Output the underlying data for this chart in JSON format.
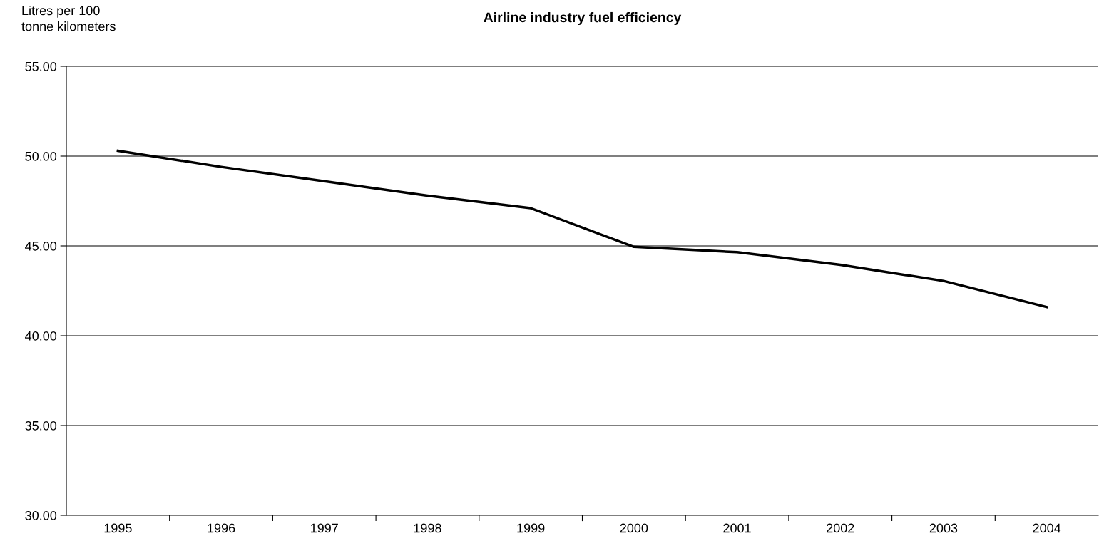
{
  "chart_data": {
    "type": "line",
    "title": "Airline industry fuel efficiency",
    "ylabel": "Litres per 100\ntonne kilometers",
    "categories": [
      "1995",
      "1996",
      "1997",
      "1998",
      "1999",
      "2000",
      "2001",
      "2002",
      "2003",
      "2004"
    ],
    "series": [
      {
        "color": "#000000",
        "values": [
          50.3,
          49.4,
          48.6,
          47.8,
          47.1,
          44.95,
          44.65,
          43.95,
          43.05,
          41.6
        ]
      }
    ],
    "ylim": [
      30,
      55
    ],
    "yticks": [
      {
        "value": 30,
        "label": "30.00"
      },
      {
        "value": 35,
        "label": "35.00"
      },
      {
        "value": 40,
        "label": "40.00"
      },
      {
        "value": 45,
        "label": "45.00"
      },
      {
        "value": 50,
        "label": "50.00"
      },
      {
        "value": 55,
        "label": "55.00"
      }
    ],
    "grid": "y",
    "marker": "none",
    "line_style": "solid"
  }
}
